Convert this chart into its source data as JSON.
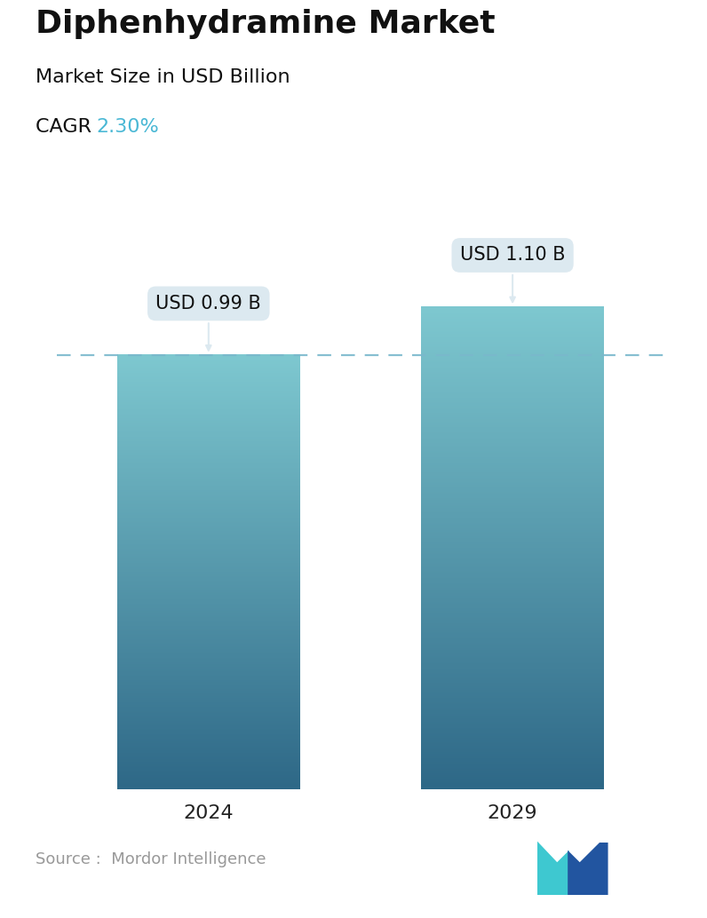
{
  "title": "Diphenhydramine Market",
  "subtitle": "Market Size in USD Billion",
  "cagr_label": "CAGR ",
  "cagr_value": "2.30%",
  "cagr_color": "#4ab8d5",
  "categories": [
    "2024",
    "2029"
  ],
  "values": [
    0.99,
    1.1
  ],
  "bar_labels": [
    "USD 0.99 B",
    "USD 1.10 B"
  ],
  "bar_top_color": "#7ec8d0",
  "bar_bottom_color": "#2e6887",
  "dashed_line_color": "#7ab8cc",
  "dashed_line_value": 0.99,
  "annotation_bg_color": "#dce9f0",
  "annotation_text_color": "#111111",
  "source_text": "Source :  Mordor Intelligence",
  "source_color": "#999999",
  "background_color": "#ffffff",
  "title_fontsize": 26,
  "subtitle_fontsize": 16,
  "cagr_fontsize": 16,
  "bar_label_fontsize": 15,
  "tick_fontsize": 16,
  "source_fontsize": 13,
  "ylim": [
    0,
    1.38
  ],
  "logo_teal": "#3ec8d0",
  "logo_blue": "#2255a0"
}
